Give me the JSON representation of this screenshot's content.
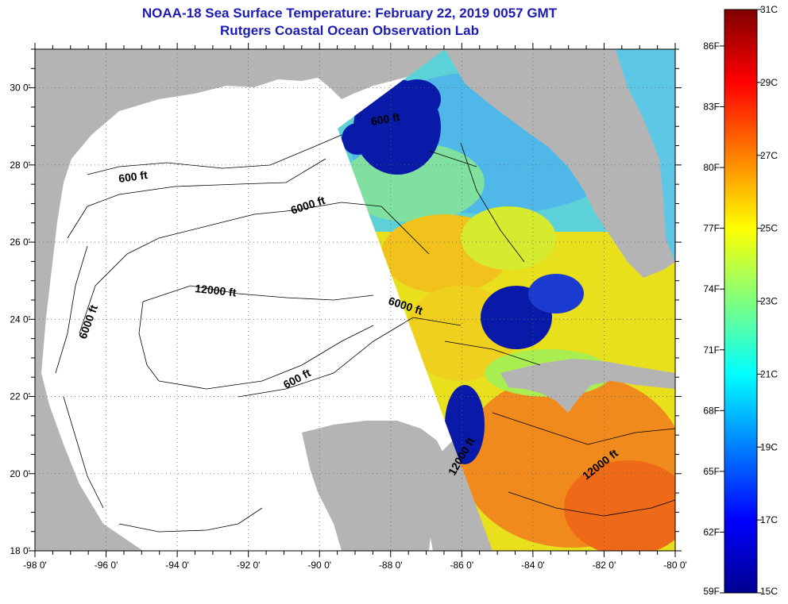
{
  "header": {
    "title": "NOAA-18 Sea Surface Temperature:  February 22, 2019 0057 GMT",
    "subtitle": "Rutgers Coastal Ocean Observation Lab"
  },
  "map": {
    "lon_ticks": [
      "-98 0'",
      "-96 0'",
      "-94 0'",
      "-92 0'",
      "-90 0'",
      "-88 0'",
      "-86 0'",
      "-84 0'",
      "-82 0'",
      "-80 0'"
    ],
    "lat_ticks": [
      "30 0'",
      "28 0'",
      "26 0'",
      "24 0'",
      "22 0'",
      "20 0'",
      "18 0'"
    ],
    "lon_range": [
      -98,
      -80
    ],
    "lat_range": [
      18,
      31
    ],
    "contour_labels": [
      "600 ft",
      "6000 ft",
      "12000 ft",
      "6000 ft",
      "6000 ft",
      "600 ft",
      "600 ft",
      "12000 ft",
      "12000 ft"
    ],
    "colors": {
      "land": "#b4b4b4",
      "no_data": "#ffffff",
      "border": "#000000"
    }
  },
  "colorbar": {
    "fahrenheit_labels": [
      "86F",
      "83F",
      "80F",
      "77F",
      "74F",
      "71F",
      "68F",
      "65F",
      "62F",
      "59F"
    ],
    "celsius_labels": [
      "31C",
      "29C",
      "27C",
      "25C",
      "23C",
      "21C",
      "19C",
      "17C",
      "15C"
    ],
    "range_c": [
      15,
      31
    ],
    "colormap": "jet"
  }
}
